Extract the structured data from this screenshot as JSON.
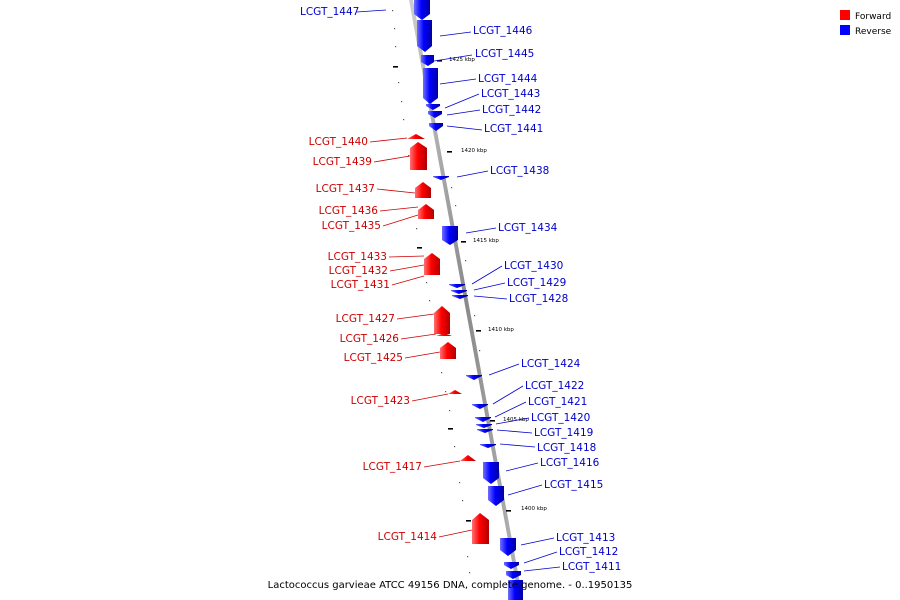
{
  "caption": "Lactococcus garvieae ATCC 49156 DNA, complete genome. - 0..1950135",
  "legend": [
    {
      "label": "Forward",
      "color": "#ff0000"
    },
    {
      "label": "Reverse",
      "color": "#0000ff"
    }
  ],
  "ticks": [
    "1425 kbp",
    "1420 kbp",
    "1415 kbp",
    "1410 kbp",
    "1405 kbp",
    "1400 kbp"
  ],
  "genes_forward": [
    "LCGT_1440",
    "LCGT_1439",
    "LCGT_1437",
    "LCGT_1436",
    "LCGT_1435",
    "LCGT_1433",
    "LCGT_1432",
    "LCGT_1431",
    "LCGT_1427",
    "LCGT_1426",
    "LCGT_1425",
    "LCGT_1423",
    "LCGT_1417",
    "LCGT_1414"
  ],
  "genes_reverse": [
    "LCGT_1447",
    "LCGT_1446",
    "LCGT_1445",
    "LCGT_1444",
    "LCGT_1443",
    "LCGT_1442",
    "LCGT_1441",
    "LCGT_1438",
    "LCGT_1434",
    "LCGT_1430",
    "LCGT_1429",
    "LCGT_1428",
    "LCGT_1424",
    "LCGT_1422",
    "LCGT_1421",
    "LCGT_1420",
    "LCGT_1419",
    "LCGT_1418",
    "LCGT_1416",
    "LCGT_1415",
    "LCGT_1413",
    "LCGT_1412",
    "LCGT_1411"
  ],
  "colors": {
    "forward": "#ff0000",
    "reverse": "#0000ff",
    "label_forward": "#cc0000",
    "label_reverse": "#0000cc",
    "backbone": "#888888"
  }
}
